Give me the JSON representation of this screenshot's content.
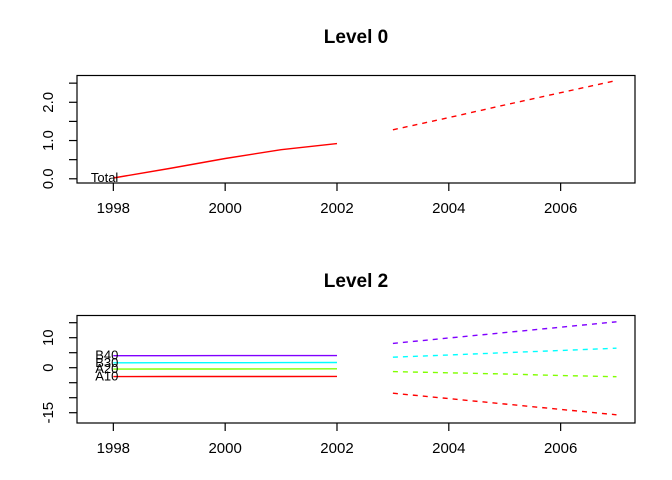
{
  "figure_background": "#ffffff",
  "axis_color": "#000000",
  "chart_data": [
    {
      "type": "line",
      "title": "Level 0",
      "xlabel": "",
      "ylabel": "",
      "grid": false,
      "legend": "none",
      "xlim": [
        1997.35,
        2007.33
      ],
      "ylim": [
        -0.11,
        2.7
      ],
      "x_ticks": [
        {
          "v": 1998,
          "label": "1998"
        },
        {
          "v": 2000,
          "label": "2000"
        },
        {
          "v": 2002,
          "label": "2002"
        },
        {
          "v": 2004,
          "label": "2004"
        },
        {
          "v": 2006,
          "label": "2006"
        }
      ],
      "y_ticks": [
        {
          "v": 0.0,
          "label": "0.0"
        },
        {
          "v": 0.5,
          "label": ""
        },
        {
          "v": 1.0,
          "label": "1.0"
        },
        {
          "v": 1.5,
          "label": ""
        },
        {
          "v": 2.0,
          "label": "2.0"
        },
        {
          "v": 2.5,
          "label": ""
        }
      ],
      "series": [
        {
          "name": "Total",
          "label": "Total",
          "color": "#ff0000",
          "history": {
            "x": [
              1998,
              1999,
              2000,
              2001,
              2002
            ],
            "y": [
              0.02,
              0.27,
              0.53,
              0.76,
              0.92
            ]
          },
          "forecast": {
            "x": [
              2003,
              2004,
              2005,
              2006,
              2007
            ],
            "y": [
              1.28,
              1.6,
              1.93,
              2.25,
              2.57
            ]
          }
        }
      ]
    },
    {
      "type": "line",
      "title": "Level 2",
      "xlabel": "",
      "ylabel": "",
      "grid": false,
      "legend": "none",
      "xlim": [
        1997.35,
        2007.33
      ],
      "ylim": [
        -18.43,
        17.4
      ],
      "x_ticks": [
        {
          "v": 1998,
          "label": "1998"
        },
        {
          "v": 2000,
          "label": "2000"
        },
        {
          "v": 2002,
          "label": "2002"
        },
        {
          "v": 2004,
          "label": "2004"
        },
        {
          "v": 2006,
          "label": "2006"
        }
      ],
      "y_ticks": [
        {
          "v": -15,
          "label": "-15"
        },
        {
          "v": -10,
          "label": ""
        },
        {
          "v": -5,
          "label": ""
        },
        {
          "v": 0,
          "label": "0"
        },
        {
          "v": 5,
          "label": ""
        },
        {
          "v": 10,
          "label": "10"
        },
        {
          "v": 15,
          "label": ""
        }
      ],
      "series": [
        {
          "name": "A10",
          "label": "A10",
          "color": "#ff0000",
          "history": {
            "x": [
              1998,
              1999,
              2000,
              2001,
              2002
            ],
            "y": [
              -2.95,
              -2.94,
              -2.93,
              -2.92,
              -2.9
            ]
          },
          "forecast": {
            "x": [
              2003,
              2004,
              2005,
              2006,
              2007
            ],
            "y": [
              -8.5,
              -10.3,
              -12.1,
              -13.9,
              -15.7
            ]
          }
        },
        {
          "name": "A20",
          "label": "A20",
          "color": "#80ff00",
          "history": {
            "x": [
              1998,
              1999,
              2000,
              2001,
              2002
            ],
            "y": [
              -0.45,
              -0.44,
              -0.42,
              -0.4,
              -0.38
            ]
          },
          "forecast": {
            "x": [
              2003,
              2004,
              2005,
              2006,
              2007
            ],
            "y": [
              -1.3,
              -1.7,
              -2.1,
              -2.6,
              -3.0
            ]
          }
        },
        {
          "name": "B30",
          "label": "B30",
          "color": "#00ffff",
          "history": {
            "x": [
              1998,
              1999,
              2000,
              2001,
              2002
            ],
            "y": [
              1.65,
              1.67,
              1.68,
              1.7,
              1.72
            ]
          },
          "forecast": {
            "x": [
              2003,
              2004,
              2005,
              2006,
              2007
            ],
            "y": [
              3.5,
              4.25,
              5.0,
              5.75,
              6.5
            ]
          }
        },
        {
          "name": "B40",
          "label": "B40",
          "color": "#8000ff",
          "history": {
            "x": [
              1998,
              1999,
              2000,
              2001,
              2002
            ],
            "y": [
              4.0,
              4.01,
              4.02,
              4.03,
              4.05
            ]
          },
          "forecast": {
            "x": [
              2003,
              2004,
              2005,
              2006,
              2007
            ],
            "y": [
              8.1,
              9.9,
              11.7,
              13.5,
              15.3
            ]
          }
        }
      ]
    }
  ]
}
